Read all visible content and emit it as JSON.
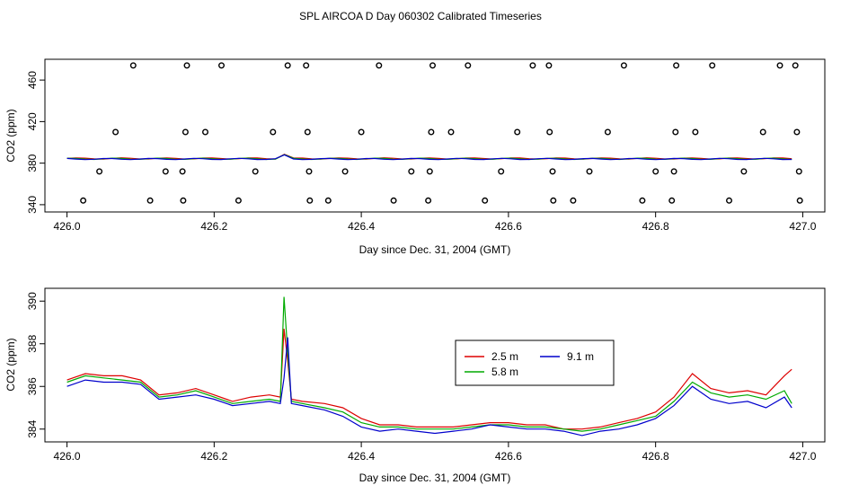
{
  "figure_title": "SPL AIRCOA D  Day 060302  Calibrated Timeseries",
  "chart_data": [
    {
      "type": "line",
      "title": "",
      "xlabel": "Day since Dec. 31, 2004 (GMT)",
      "ylabel": "CO2 (ppm)",
      "xlim": [
        425.97,
        427.03
      ],
      "ylim": [
        333,
        480
      ],
      "xticks": [
        "426.0",
        "426.2",
        "426.4",
        "426.6",
        "426.8",
        "427.0"
      ],
      "yticks": [
        "340",
        "380",
        "420",
        "460"
      ],
      "grid": false,
      "markers": {
        "marker": "open-circle",
        "color": "#000000",
        "points": [
          [
            426.09,
            474
          ],
          [
            426.163,
            474
          ],
          [
            426.21,
            474
          ],
          [
            426.3,
            474
          ],
          [
            426.325,
            474
          ],
          [
            426.424,
            474
          ],
          [
            426.497,
            474
          ],
          [
            426.545,
            474
          ],
          [
            426.633,
            474
          ],
          [
            426.655,
            474
          ],
          [
            426.757,
            474
          ],
          [
            426.828,
            474
          ],
          [
            426.877,
            474
          ],
          [
            426.969,
            474
          ],
          [
            426.99,
            474
          ],
          [
            426.066,
            410
          ],
          [
            426.161,
            410
          ],
          [
            426.188,
            410
          ],
          [
            426.28,
            410
          ],
          [
            426.327,
            410
          ],
          [
            426.4,
            410
          ],
          [
            426.495,
            410
          ],
          [
            426.522,
            410
          ],
          [
            426.612,
            410
          ],
          [
            426.656,
            410
          ],
          [
            426.735,
            410
          ],
          [
            426.827,
            410
          ],
          [
            426.854,
            410
          ],
          [
            426.946,
            410
          ],
          [
            426.992,
            410
          ],
          [
            426.044,
            372
          ],
          [
            426.134,
            372
          ],
          [
            426.157,
            372
          ],
          [
            426.256,
            372
          ],
          [
            426.329,
            372
          ],
          [
            426.378,
            372
          ],
          [
            426.468,
            372
          ],
          [
            426.493,
            372
          ],
          [
            426.59,
            372
          ],
          [
            426.66,
            372
          ],
          [
            426.71,
            372
          ],
          [
            426.8,
            372
          ],
          [
            426.825,
            372
          ],
          [
            426.92,
            372
          ],
          [
            426.995,
            372
          ],
          [
            426.022,
            344
          ],
          [
            426.113,
            344
          ],
          [
            426.158,
            344
          ],
          [
            426.233,
            344
          ],
          [
            426.33,
            344
          ],
          [
            426.355,
            344
          ],
          [
            426.444,
            344
          ],
          [
            426.491,
            344
          ],
          [
            426.568,
            344
          ],
          [
            426.661,
            344
          ],
          [
            426.688,
            344
          ],
          [
            426.782,
            344
          ],
          [
            426.822,
            344
          ],
          [
            426.9,
            344
          ],
          [
            426.996,
            344
          ]
        ]
      },
      "series": [
        {
          "name": "",
          "color": "#dd0000",
          "level": 384.5
        },
        {
          "name": "",
          "color": "#00aa00",
          "level": 384.2
        },
        {
          "name": "",
          "color": "#0000cc",
          "level": 384.0
        }
      ]
    },
    {
      "type": "line",
      "title": "",
      "xlabel": "Day since Dec. 31, 2004 (GMT)",
      "ylabel": "CO2 (ppm)",
      "xlim": [
        425.97,
        427.03
      ],
      "ylim": [
        383.4,
        390.6
      ],
      "xticks": [
        "426.0",
        "426.2",
        "426.4",
        "426.6",
        "426.8",
        "427.0"
      ],
      "yticks": [
        "384",
        "386",
        "388",
        "390"
      ],
      "grid": false,
      "legend": {
        "placement": "center-right"
      },
      "x": [
        426.0,
        426.025,
        426.05,
        426.075,
        426.1,
        426.125,
        426.15,
        426.175,
        426.2,
        426.225,
        426.25,
        426.275,
        426.29,
        426.295,
        426.3,
        426.305,
        426.32,
        426.35,
        426.375,
        426.4,
        426.425,
        426.45,
        426.475,
        426.5,
        426.525,
        426.55,
        426.575,
        426.6,
        426.625,
        426.65,
        426.675,
        426.7,
        426.725,
        426.75,
        426.775,
        426.8,
        426.825,
        426.85,
        426.875,
        426.9,
        426.925,
        426.95,
        426.975,
        426.985
      ],
      "series": [
        {
          "name": "2.5 m",
          "color": "#dd0000",
          "values": [
            386.3,
            386.6,
            386.5,
            386.5,
            386.3,
            385.6,
            385.7,
            385.9,
            385.6,
            385.3,
            385.5,
            385.6,
            385.5,
            388.7,
            387.2,
            385.4,
            385.3,
            385.2,
            385.0,
            384.5,
            384.2,
            384.2,
            384.1,
            384.1,
            384.1,
            384.2,
            384.3,
            384.3,
            384.2,
            384.2,
            384.0,
            384.0,
            384.1,
            384.3,
            384.5,
            384.8,
            385.5,
            386.6,
            385.9,
            385.7,
            385.8,
            385.6,
            386.5,
            386.8
          ]
        },
        {
          "name": "5.8 m",
          "color": "#00aa00",
          "values": [
            386.2,
            386.5,
            386.4,
            386.3,
            386.2,
            385.5,
            385.6,
            385.8,
            385.5,
            385.2,
            385.3,
            385.4,
            385.3,
            390.2,
            387.6,
            385.3,
            385.2,
            385.0,
            384.8,
            384.3,
            384.1,
            384.1,
            384.0,
            384.0,
            384.0,
            384.1,
            384.2,
            384.2,
            384.1,
            384.1,
            384.0,
            383.9,
            384.0,
            384.2,
            384.4,
            384.6,
            385.3,
            386.2,
            385.7,
            385.5,
            385.6,
            385.4,
            385.8,
            385.2
          ]
        },
        {
          "name": "9.1 m",
          "color": "#0000cc",
          "values": [
            386.0,
            386.3,
            386.2,
            386.2,
            386.1,
            385.4,
            385.5,
            385.6,
            385.4,
            385.1,
            385.2,
            385.3,
            385.2,
            386.4,
            388.3,
            385.2,
            385.1,
            384.9,
            384.6,
            384.1,
            383.9,
            384.0,
            383.9,
            383.8,
            383.9,
            384.0,
            384.2,
            384.1,
            384.0,
            384.0,
            383.9,
            383.7,
            383.9,
            384.0,
            384.2,
            384.5,
            385.1,
            386.0,
            385.4,
            385.2,
            385.3,
            385.0,
            385.5,
            385.0
          ]
        }
      ]
    }
  ]
}
